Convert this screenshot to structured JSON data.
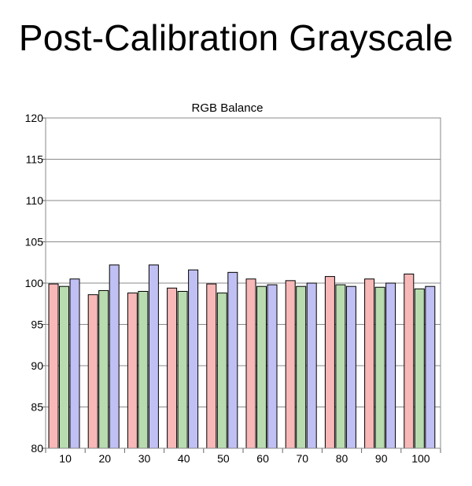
{
  "page": {
    "title": "Post-Calibration Grayscale"
  },
  "chart_data": {
    "type": "bar",
    "title": "RGB Balance",
    "xlabel": "",
    "ylabel": "",
    "ylim": [
      80,
      120
    ],
    "yticks": [
      80,
      85,
      90,
      95,
      100,
      105,
      110,
      115,
      120
    ],
    "grid": true,
    "legend": "none",
    "categories": [
      "10",
      "20",
      "30",
      "40",
      "50",
      "60",
      "70",
      "80",
      "90",
      "100"
    ],
    "series": [
      {
        "color": "#f8b8b8",
        "values": [
          99.9,
          98.6,
          98.8,
          99.4,
          99.9,
          100.5,
          100.3,
          100.8,
          100.5,
          101.1
        ]
      },
      {
        "color": "#b8dcb0",
        "values": [
          99.6,
          99.1,
          99.0,
          99.0,
          98.8,
          99.6,
          99.6,
          99.8,
          99.5,
          99.3
        ]
      },
      {
        "color": "#c0c0f4",
        "values": [
          100.5,
          102.2,
          102.2,
          101.6,
          101.3,
          99.8,
          100.0,
          99.6,
          100.0,
          99.6
        ]
      }
    ]
  }
}
